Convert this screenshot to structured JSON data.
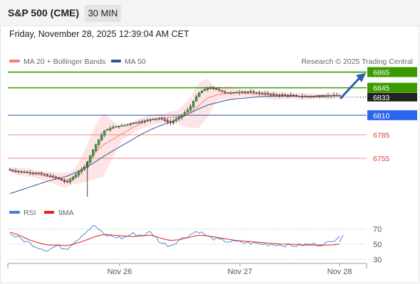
{
  "header": {
    "title": "S&P 500 (CME)",
    "timeframe": "30 MIN"
  },
  "datetime": "Friday, November 28, 2025 12:39:04 AM CET",
  "legend": {
    "ma20": {
      "label": "MA 20 + Bollinger Bands",
      "color": "#f08080"
    },
    "ma50": {
      "label": "MA 50",
      "color": "#2a5599"
    },
    "credit": "Research © 2025 Trading Central"
  },
  "levels": [
    {
      "value": 6865,
      "label": "6865",
      "kind": "target",
      "color": "#3a9a00"
    },
    {
      "value": 6845,
      "label": "6845",
      "kind": "target",
      "color": "#3a9a00"
    },
    {
      "value": 6810,
      "label": "6810",
      "kind": "pivot",
      "color": "#2a66cc"
    },
    {
      "value": 6785,
      "label": "6785",
      "kind": "support",
      "color": "#e05050"
    },
    {
      "value": 6755,
      "label": "6755",
      "kind": "support",
      "color": "#e05050"
    }
  ],
  "last_price": {
    "value": 6833,
    "label": "6833"
  },
  "rsi_legend": {
    "rsi": {
      "label": "RSI",
      "color": "#4a7bd8"
    },
    "ma9": {
      "label": "9MA",
      "color": "#e02020"
    }
  },
  "chart_data": [
    {
      "type": "candlestick",
      "title": "S&P 500 (CME)",
      "interval": "30 MIN",
      "ylim": [
        6698,
        6870
      ],
      "x_labels": [
        "Nov 26",
        "Nov 27",
        "Nov 28"
      ],
      "close_approx": [
        6740,
        6738,
        6737,
        6736,
        6733,
        6730,
        6724,
        6734,
        6745,
        6770,
        6790,
        6795,
        6797,
        6800,
        6802,
        6805,
        6806,
        6800,
        6808,
        6818,
        6838,
        6845,
        6843,
        6838,
        6839,
        6840,
        6839,
        6838,
        6836,
        6836,
        6835,
        6834,
        6834,
        6834,
        6835,
        6835
      ],
      "ma20_approx": [
        6740,
        6738,
        6737,
        6734,
        6732,
        6729,
        6727,
        6733,
        6746,
        6762,
        6773,
        6780,
        6787,
        6794,
        6800,
        6804,
        6806,
        6807,
        6808,
        6812,
        6822,
        6832,
        6836,
        6838,
        6839,
        6838,
        6837,
        6836,
        6835,
        6835,
        6835,
        6834,
        6834,
        6834,
        6835,
        6835
      ],
      "ma50_approx": [
        6710,
        6714,
        6718,
        6722,
        6726,
        6729,
        6732,
        6737,
        6743,
        6750,
        6758,
        6765,
        6772,
        6779,
        6786,
        6792,
        6797,
        6801,
        6806,
        6812,
        6818,
        6823,
        6826,
        6829,
        6831,
        6832,
        6833,
        6834,
        6834,
        6834,
        6834,
        6834,
        6834,
        6835,
        6835,
        6835
      ],
      "levels": [
        6865,
        6845,
        6810,
        6785,
        6755
      ],
      "last": 6833
    },
    {
      "type": "line",
      "title": "RSI",
      "ylim": [
        20,
        80
      ],
      "y_ticks": [
        70,
        50,
        30
      ],
      "rsi_approx": [
        64,
        58,
        52,
        46,
        42,
        48,
        44,
        55,
        66,
        75,
        62,
        60,
        58,
        64,
        62,
        66,
        52,
        48,
        56,
        62,
        68,
        60,
        56,
        54,
        53,
        52,
        51,
        50,
        50,
        49,
        48,
        49,
        50,
        50,
        52,
        62
      ],
      "ma9_approx": [
        66,
        62,
        56,
        52,
        49,
        49,
        48,
        51,
        55,
        60,
        63,
        62,
        61,
        60,
        61,
        62,
        58,
        55,
        56,
        59,
        62,
        61,
        59,
        57,
        55,
        54,
        53,
        52,
        51,
        50,
        50,
        49,
        49,
        49,
        49,
        50
      ]
    }
  ]
}
